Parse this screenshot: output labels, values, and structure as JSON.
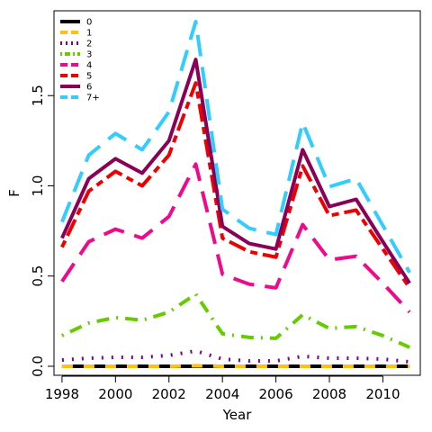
{
  "chart_data": {
    "type": "line",
    "title": "",
    "xlabel": "Year",
    "ylabel": "F",
    "xlim": [
      1997.7,
      2011.4
    ],
    "ylim": [
      -0.05,
      1.97
    ],
    "x": [
      1998,
      1999,
      2000,
      2001,
      2002,
      2003,
      2004,
      2005,
      2006,
      2007,
      2008,
      2009,
      2010,
      2011
    ],
    "x_ticks": [
      1998,
      2000,
      2002,
      2004,
      2006,
      2008,
      2010
    ],
    "x_tick_labels": [
      "1998",
      "2000",
      "2002",
      "2004",
      "2006",
      "2008",
      "2010"
    ],
    "y_ticks": [
      0.0,
      0.5,
      1.0,
      1.5
    ],
    "y_tick_labels": [
      "0.0",
      "0.5",
      "1.0",
      "1.5"
    ],
    "grid": false,
    "legend_position": "top-left",
    "series": [
      {
        "name": "0",
        "color": "#000000",
        "dash": "solid",
        "values": [
          0.0,
          0.0,
          0.0,
          0.0,
          0.0,
          0.0,
          0.0,
          0.0,
          0.0,
          0.0,
          0.0,
          0.0,
          0.0,
          0.0
        ]
      },
      {
        "name": "1",
        "color": "#FFC20A",
        "dash": "dashed",
        "values": [
          0.0,
          0.0,
          0.0,
          0.0,
          0.0,
          0.003,
          0.0,
          0.0,
          0.0,
          0.0,
          0.0,
          0.0,
          0.0,
          0.0
        ]
      },
      {
        "name": "2",
        "color": "#7B0099",
        "dash": "dotted",
        "values": [
          0.035,
          0.045,
          0.05,
          0.05,
          0.06,
          0.085,
          0.04,
          0.03,
          0.03,
          0.055,
          0.045,
          0.045,
          0.04,
          0.025
        ]
      },
      {
        "name": "3",
        "color": "#66CC00",
        "dash": "dotdash",
        "values": [
          0.17,
          0.24,
          0.27,
          0.255,
          0.3,
          0.4,
          0.18,
          0.16,
          0.155,
          0.285,
          0.21,
          0.22,
          0.17,
          0.105
        ]
      },
      {
        "name": "4",
        "color": "#EE0A8C",
        "dash": "longdash",
        "values": [
          0.47,
          0.69,
          0.76,
          0.71,
          0.83,
          1.12,
          0.51,
          0.455,
          0.435,
          0.785,
          0.59,
          0.61,
          0.46,
          0.3
        ]
      },
      {
        "name": "5",
        "color": "#EE0000",
        "dash": "twodash",
        "values": [
          0.66,
          0.97,
          1.08,
          1.0,
          1.17,
          1.57,
          0.71,
          0.635,
          0.605,
          1.11,
          0.835,
          0.865,
          0.65,
          0.435
        ]
      },
      {
        "name": "6",
        "color": "#8B0057",
        "dash": "solid",
        "values": [
          0.71,
          1.04,
          1.15,
          1.07,
          1.25,
          1.7,
          0.775,
          0.68,
          0.65,
          1.2,
          0.885,
          0.925,
          0.69,
          0.46
        ]
      },
      {
        "name": "7+",
        "color": "#33CCFF",
        "dash": "longdash",
        "values": [
          0.8,
          1.17,
          1.29,
          1.2,
          1.41,
          1.91,
          0.87,
          0.765,
          0.73,
          1.35,
          0.995,
          1.04,
          0.78,
          0.52
        ]
      }
    ]
  }
}
